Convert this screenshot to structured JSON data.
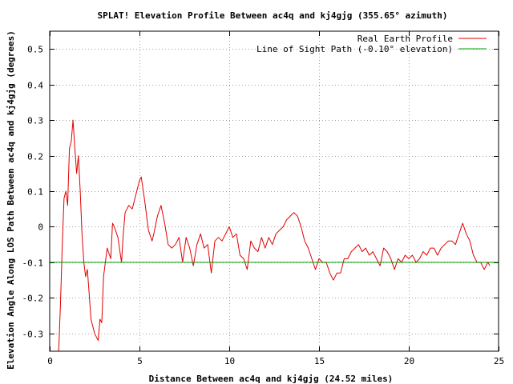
{
  "chart_data": {
    "type": "line",
    "title": "SPLAT! Elevation Profile Between ac4q and kj4gjg (355.65° azimuth)",
    "xlabel": "Distance Between ac4q and kj4gjg (24.52 miles)",
    "ylabel": "Elevation Angle Along LOS Path Between ac4q and kj4gjg (degrees)",
    "xlim": [
      0,
      25
    ],
    "ylim": [
      -0.35,
      0.55
    ],
    "xticks": [
      0,
      5,
      10,
      15,
      20,
      25
    ],
    "xtick_labels": [
      "0",
      "5",
      "10",
      "15",
      "20",
      "25"
    ],
    "yticks": [
      -0.3,
      -0.2,
      -0.1,
      0,
      0.1,
      0.2,
      0.3,
      0.4,
      0.5
    ],
    "ytick_labels": [
      "-0.3",
      "-0.2",
      "-0.1",
      "0",
      "0.1",
      "0.2",
      "0.3",
      "0.4",
      "0.5"
    ],
    "grid": true,
    "legend_position": "top-right",
    "series": [
      {
        "name": "Real Earth Profile",
        "color": "#e00000",
        "x": [
          0.5,
          0.6,
          0.7,
          0.8,
          0.9,
          1.0,
          1.1,
          1.2,
          1.3,
          1.4,
          1.5,
          1.6,
          1.7,
          1.8,
          1.9,
          2.0,
          2.1,
          2.2,
          2.3,
          2.5,
          2.7,
          2.8,
          2.9,
          3.0,
          3.2,
          3.4,
          3.5,
          3.6,
          3.8,
          4.0,
          4.1,
          4.2,
          4.4,
          4.6,
          4.8,
          5.0,
          5.1,
          5.3,
          5.5,
          5.7,
          5.8,
          6.0,
          6.2,
          6.4,
          6.6,
          6.8,
          7.0,
          7.2,
          7.4,
          7.6,
          7.8,
          8.0,
          8.2,
          8.4,
          8.6,
          8.8,
          9.0,
          9.2,
          9.4,
          9.6,
          9.8,
          10.0,
          10.2,
          10.4,
          10.6,
          10.8,
          11.0,
          11.2,
          11.4,
          11.6,
          11.8,
          12.0,
          12.2,
          12.4,
          12.6,
          12.8,
          13.0,
          13.2,
          13.4,
          13.6,
          13.8,
          14.0,
          14.2,
          14.4,
          14.6,
          14.8,
          15.0,
          15.2,
          15.4,
          15.6,
          15.8,
          16.0,
          16.2,
          16.4,
          16.6,
          16.8,
          17.0,
          17.2,
          17.4,
          17.6,
          17.8,
          18.0,
          18.2,
          18.4,
          18.6,
          18.8,
          19.0,
          19.2,
          19.4,
          19.6,
          19.8,
          20.0,
          20.2,
          20.4,
          20.6,
          20.8,
          21.0,
          21.2,
          21.4,
          21.6,
          21.8,
          22.0,
          22.2,
          22.4,
          22.6,
          22.8,
          23.0,
          23.2,
          23.4,
          23.6,
          23.8,
          24.0,
          24.2,
          24.4,
          24.52
        ],
        "y": [
          -0.35,
          -0.22,
          -0.05,
          0.08,
          0.1,
          0.06,
          0.22,
          0.24,
          0.3,
          0.22,
          0.15,
          0.2,
          0.1,
          -0.02,
          -0.1,
          -0.14,
          -0.12,
          -0.19,
          -0.26,
          -0.3,
          -0.32,
          -0.26,
          -0.27,
          -0.14,
          -0.06,
          -0.09,
          0.01,
          0.0,
          -0.03,
          -0.1,
          -0.02,
          0.04,
          0.06,
          0.05,
          0.09,
          0.13,
          0.14,
          0.07,
          -0.01,
          -0.04,
          -0.02,
          0.03,
          0.06,
          0.01,
          -0.05,
          -0.06,
          -0.05,
          -0.03,
          -0.1,
          -0.03,
          -0.06,
          -0.11,
          -0.05,
          -0.02,
          -0.06,
          -0.05,
          -0.13,
          -0.04,
          -0.03,
          -0.04,
          -0.02,
          0.0,
          -0.03,
          -0.02,
          -0.08,
          -0.09,
          -0.12,
          -0.04,
          -0.06,
          -0.07,
          -0.03,
          -0.06,
          -0.03,
          -0.05,
          -0.02,
          -0.01,
          0.0,
          0.02,
          0.03,
          0.04,
          0.03,
          0.0,
          -0.04,
          -0.06,
          -0.09,
          -0.12,
          -0.09,
          -0.1,
          -0.1,
          -0.13,
          -0.15,
          -0.13,
          -0.13,
          -0.09,
          -0.09,
          -0.07,
          -0.06,
          -0.05,
          -0.07,
          -0.06,
          -0.08,
          -0.07,
          -0.09,
          -0.11,
          -0.06,
          -0.07,
          -0.09,
          -0.12,
          -0.09,
          -0.1,
          -0.08,
          -0.09,
          -0.08,
          -0.1,
          -0.09,
          -0.07,
          -0.08,
          -0.06,
          -0.06,
          -0.08,
          -0.06,
          -0.05,
          -0.04,
          -0.04,
          -0.05,
          -0.02,
          0.01,
          -0.02,
          -0.04,
          -0.08,
          -0.1,
          -0.1,
          -0.12,
          -0.1,
          -0.11
        ]
      },
      {
        "name": "Line of Sight Path (-0.10° elevation)",
        "color": "#00a000",
        "x": [
          0,
          25
        ],
        "y": [
          -0.1,
          -0.1
        ]
      }
    ]
  }
}
